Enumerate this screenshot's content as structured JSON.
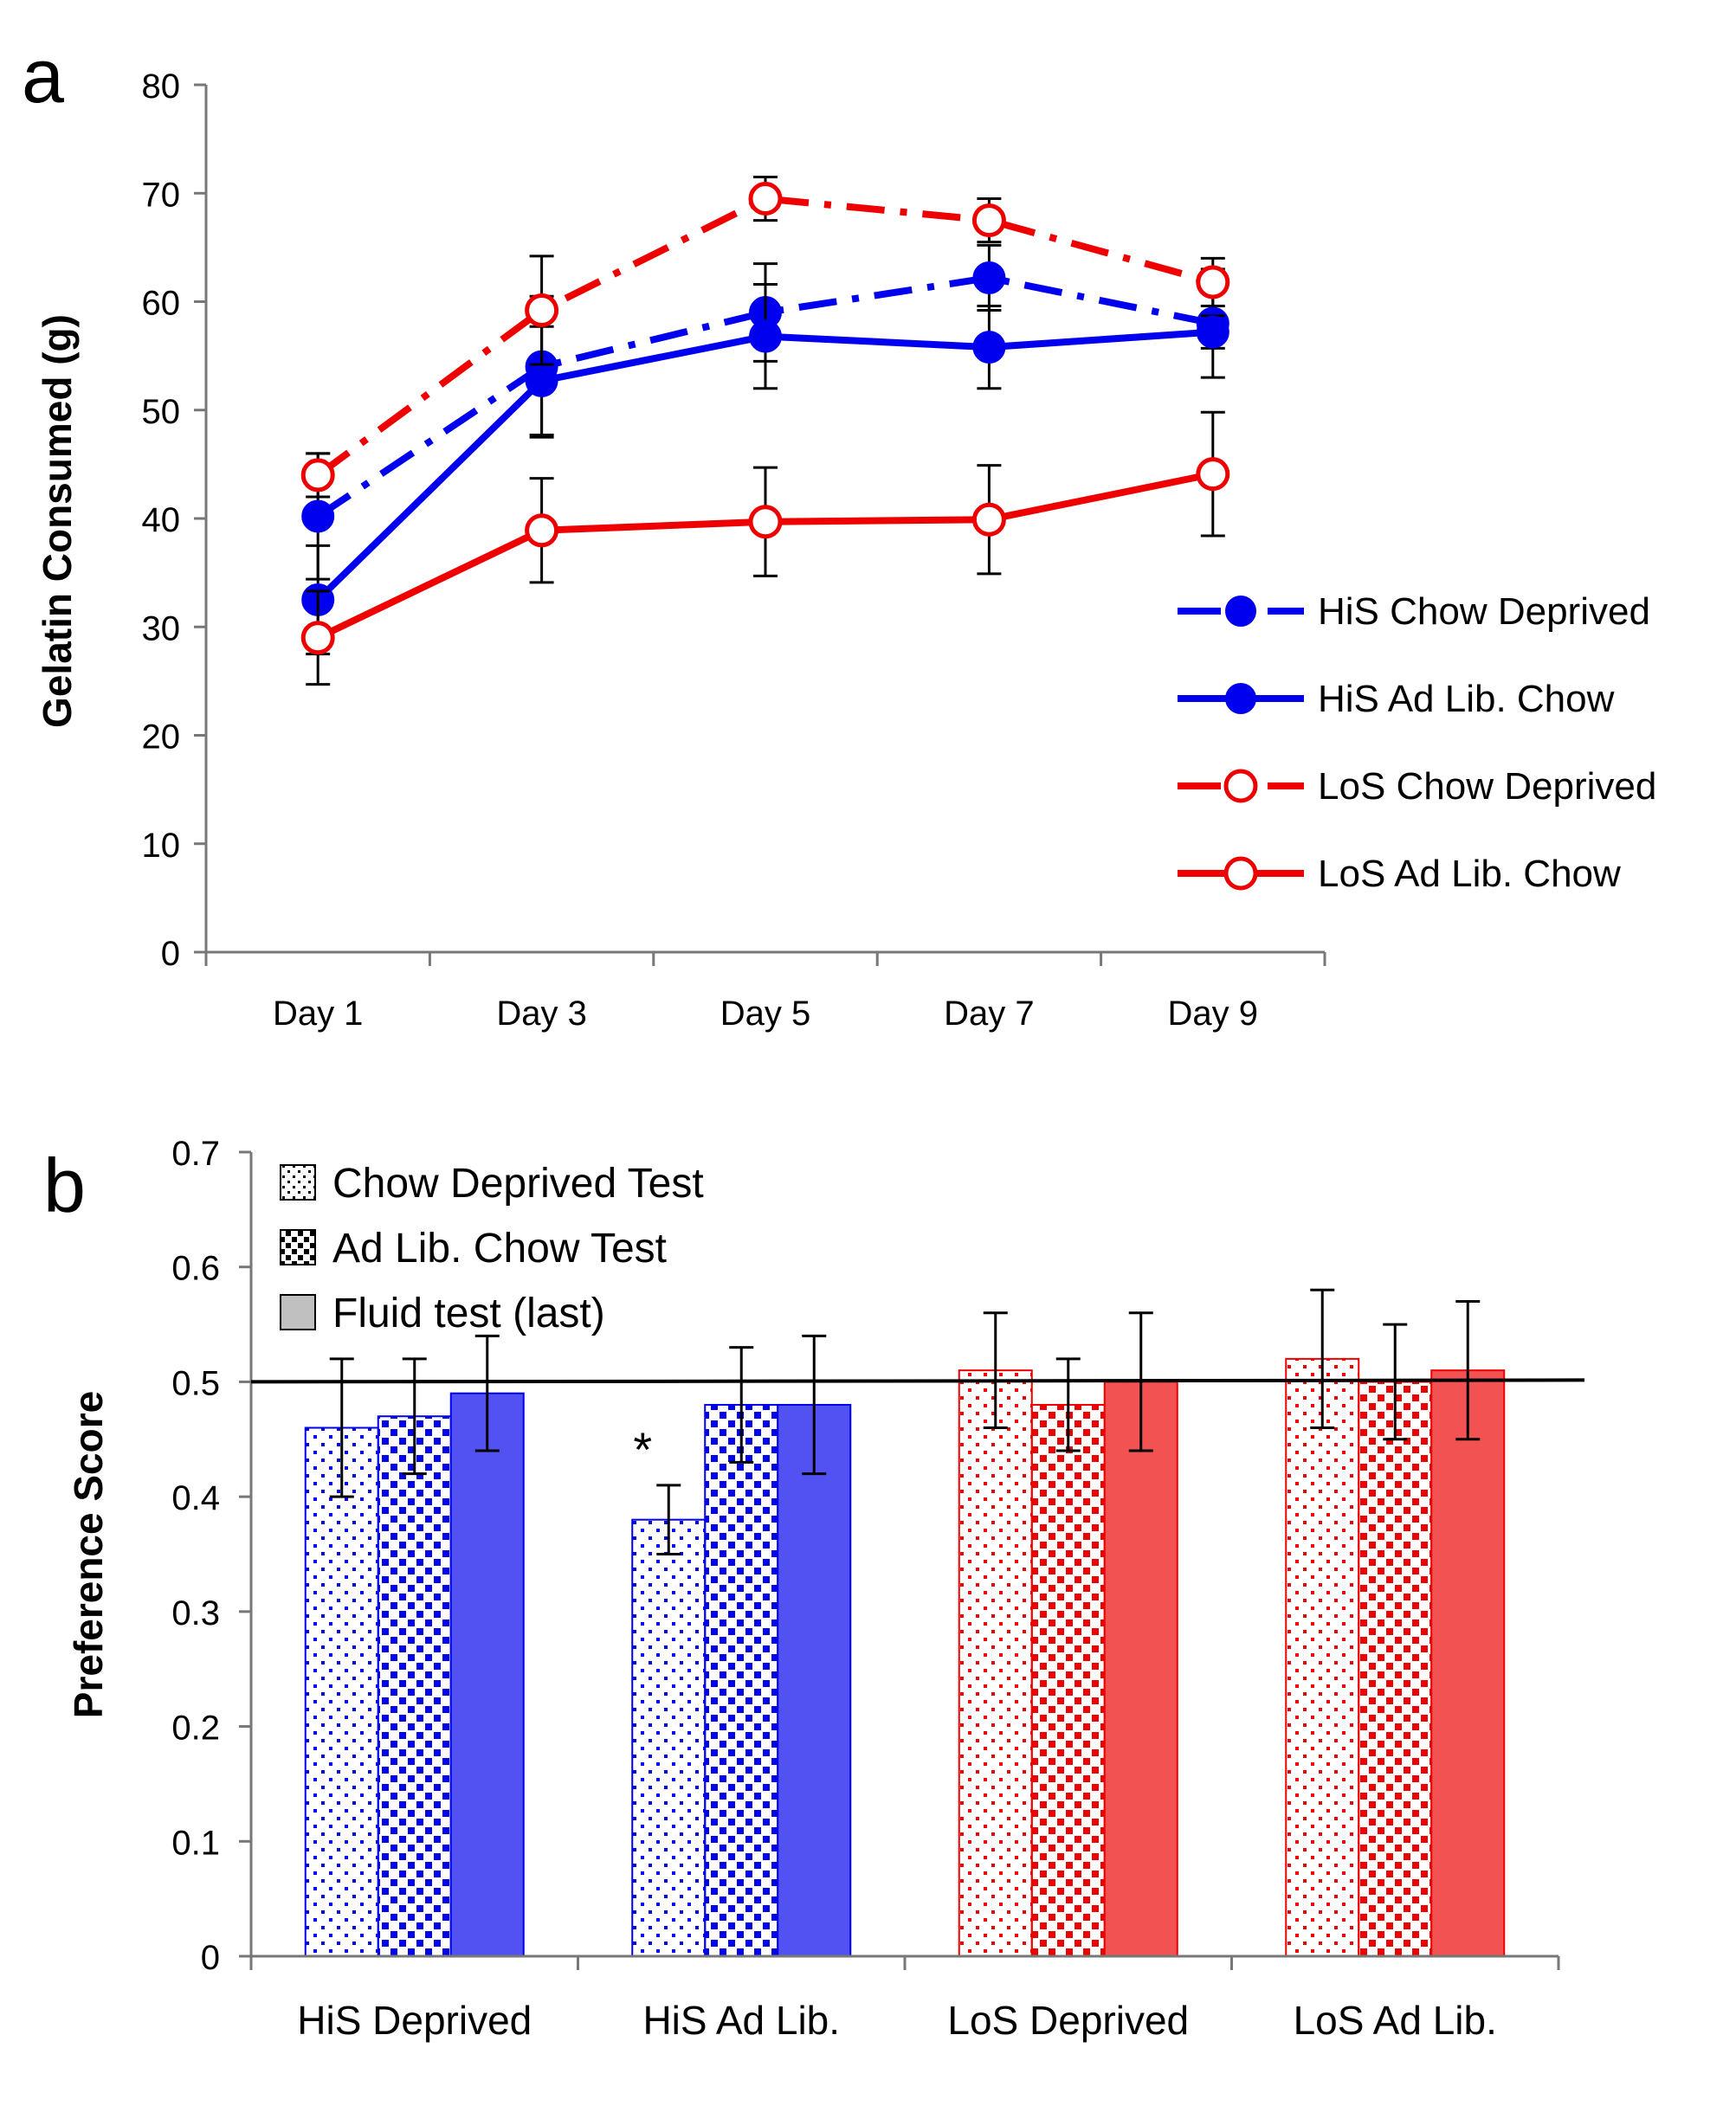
{
  "chart_data": [
    {
      "panel_label": "a",
      "type": "line",
      "title": "",
      "xlabel": "",
      "ylabel": "Gelatin Consumed (g)",
      "categories": [
        "Day 1",
        "Day 3",
        "Day 5",
        "Day 7",
        "Day 9"
      ],
      "ylim": [
        0,
        80
      ],
      "yticks": [
        "0",
        "10",
        "20",
        "30",
        "40",
        "50",
        "60",
        "70",
        "80"
      ],
      "grid": false,
      "legend_position": "right",
      "series": [
        {
          "name": "HiS Chow Deprived",
          "color": "#0000ee",
          "dash": "dash-dot",
          "marker": "filled-circle",
          "values": [
            40.2,
            54.0,
            59.0,
            62.2,
            58.0
          ],
          "errors": [
            5.8,
            6.5,
            4.5,
            3.0,
            5.0
          ]
        },
        {
          "name": "HiS Ad Lib. Chow",
          "color": "#0000ee",
          "dash": "solid",
          "marker": "filled-circle",
          "values": [
            32.5,
            52.7,
            56.8,
            55.8,
            57.2
          ],
          "errors": [
            5.0,
            5.0,
            4.8,
            3.8,
            1.5
          ]
        },
        {
          "name": "LoS Chow Deprived",
          "color": "#ee0000",
          "dash": "dash-dot",
          "marker": "open-circle",
          "values": [
            44.0,
            59.2,
            69.5,
            67.5,
            61.8
          ],
          "errors": [
            2.0,
            5.0,
            2.0,
            2.0,
            2.2
          ]
        },
        {
          "name": "LoS Ad Lib. Chow",
          "color": "#ee0000",
          "dash": "solid",
          "marker": "open-circle",
          "values": [
            29.0,
            38.9,
            39.7,
            39.9,
            44.1
          ],
          "errors": [
            4.3,
            4.8,
            5.0,
            5.0,
            5.7
          ]
        }
      ]
    },
    {
      "panel_label": "b",
      "type": "bar",
      "title": "",
      "xlabel": "",
      "ylabel": "Preference Score",
      "categories": [
        "HiS Deprived",
        "HiS Ad Lib.",
        "LoS Deprived",
        "LoS Ad Lib."
      ],
      "category_colors": [
        "#0000ee",
        "#0000ee",
        "#ee0000",
        "#ee0000"
      ],
      "ylim": [
        0,
        0.7
      ],
      "yticks": [
        "0",
        "0.1",
        "0.2",
        "0.3",
        "0.4",
        "0.5",
        "0.6",
        "0.7"
      ],
      "reference_line": 0.5,
      "grid": false,
      "legend_position": "top-left",
      "series": [
        {
          "name": "Chow Deprived Test",
          "pattern": "fine-dots",
          "values": [
            0.46,
            0.38,
            0.51,
            0.52
          ],
          "errors": [
            0.06,
            0.03,
            0.05,
            0.06
          ]
        },
        {
          "name": "Ad Lib. Chow Test",
          "pattern": "coarse-squares",
          "values": [
            0.47,
            0.48,
            0.48,
            0.5
          ],
          "errors": [
            0.05,
            0.05,
            0.04,
            0.05
          ]
        },
        {
          "name": "Fluid test (last)",
          "pattern": "solid",
          "values": [
            0.49,
            0.48,
            0.5,
            0.51
          ],
          "errors": [
            0.05,
            0.06,
            0.06,
            0.06
          ]
        }
      ],
      "annotations": [
        {
          "text": "*",
          "category": "HiS Ad Lib.",
          "series": "Chow Deprived Test"
        }
      ]
    }
  ]
}
